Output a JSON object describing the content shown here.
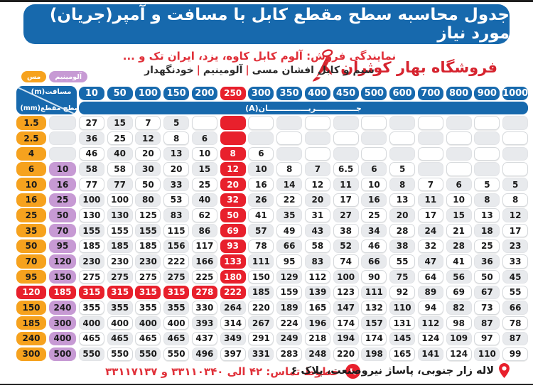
{
  "title": "جدول محاسبه سطح مقطع کابل با مسافت و آمپر(جریان) مورد نیاز",
  "brand": {
    "name": "فروشگاه بهار کوثران"
  },
  "subheader": {
    "line1": "نمایندگی فروش: آلوم کابل کاوه، یزد، ایران تک و ...",
    "line2_segments": [
      "سیم و کابل افشان مسی",
      "آلومینیم",
      "خودنگهدار"
    ]
  },
  "legend": {
    "copper": "مس",
    "aluminum": "آلومینیم"
  },
  "table": {
    "corner": {
      "top": "مسافت(m)",
      "bottom": "سطح مقطع(mm)"
    },
    "current_label": "جـــــــــــــــريـــــــــــــــان(A)",
    "distances": [
      "10",
      "50",
      "100",
      "150",
      "200",
      "250",
      "300",
      "350",
      "400",
      "450",
      "500",
      "600",
      "700",
      "800",
      "900",
      "1000"
    ],
    "copper_sizes": [
      "1.5",
      "2.5",
      "4",
      "6",
      "10",
      "16",
      "25",
      "35",
      "50",
      "70",
      "95",
      "120",
      "150",
      "185",
      "240",
      "300"
    ],
    "aluminum_sizes": [
      "",
      "",
      "",
      "10",
      "16",
      "25",
      "50",
      "70",
      "95",
      "120",
      "150",
      "185",
      "240",
      "300",
      "400",
      "500"
    ],
    "highlight_col_index": 5,
    "highlight_row_index": 11,
    "rows": [
      [
        "27",
        "15",
        "7",
        "5",
        "",
        "",
        "",
        "",
        "",
        "",
        "",
        "",
        "",
        "",
        "",
        ""
      ],
      [
        "36",
        "25",
        "12",
        "8",
        "6",
        "",
        "",
        "",
        "",
        "",
        "",
        "",
        "",
        "",
        "",
        ""
      ],
      [
        "46",
        "40",
        "20",
        "13",
        "10",
        "8",
        "6",
        "",
        "",
        "",
        "",
        "",
        "",
        "",
        "",
        ""
      ],
      [
        "58",
        "58",
        "30",
        "20",
        "15",
        "12",
        "10",
        "8",
        "7",
        "6.5",
        "6",
        "5",
        "",
        "",
        "",
        ""
      ],
      [
        "77",
        "77",
        "50",
        "33",
        "25",
        "20",
        "16",
        "14",
        "12",
        "11",
        "10",
        "8",
        "7",
        "6",
        "5",
        "5"
      ],
      [
        "100",
        "100",
        "80",
        "53",
        "40",
        "32",
        "26",
        "22",
        "20",
        "17",
        "16",
        "13",
        "11",
        "10",
        "8",
        "8"
      ],
      [
        "130",
        "130",
        "125",
        "83",
        "62",
        "50",
        "41",
        "35",
        "31",
        "27",
        "25",
        "20",
        "17",
        "15",
        "13",
        "12"
      ],
      [
        "155",
        "155",
        "155",
        "115",
        "86",
        "69",
        "57",
        "49",
        "43",
        "38",
        "34",
        "28",
        "24",
        "21",
        "18",
        "17"
      ],
      [
        "185",
        "185",
        "185",
        "156",
        "117",
        "93",
        "78",
        "66",
        "58",
        "52",
        "46",
        "38",
        "32",
        "28",
        "25",
        "23"
      ],
      [
        "230",
        "230",
        "230",
        "222",
        "166",
        "133",
        "111",
        "95",
        "83",
        "74",
        "66",
        "55",
        "47",
        "41",
        "36",
        "33"
      ],
      [
        "275",
        "275",
        "275",
        "275",
        "225",
        "180",
        "150",
        "129",
        "112",
        "100",
        "90",
        "75",
        "64",
        "56",
        "50",
        "45"
      ],
      [
        "315",
        "315",
        "315",
        "315",
        "278",
        "222",
        "185",
        "159",
        "139",
        "123",
        "111",
        "92",
        "89",
        "69",
        "67",
        "55"
      ],
      [
        "355",
        "355",
        "355",
        "355",
        "330",
        "264",
        "220",
        "189",
        "165",
        "147",
        "132",
        "110",
        "94",
        "82",
        "73",
        "66"
      ],
      [
        "400",
        "400",
        "400",
        "400",
        "393",
        "314",
        "267",
        "224",
        "196",
        "174",
        "157",
        "131",
        "112",
        "98",
        "87",
        "78"
      ],
      [
        "465",
        "465",
        "465",
        "465",
        "437",
        "349",
        "291",
        "249",
        "218",
        "194",
        "174",
        "145",
        "124",
        "109",
        "97",
        "87"
      ],
      [
        "550",
        "550",
        "550",
        "550",
        "496",
        "397",
        "331",
        "283",
        "248",
        "220",
        "198",
        "165",
        "141",
        "124",
        "110",
        "99"
      ]
    ]
  },
  "footer": {
    "phones": "خطوط تماس: ۴۲ الی ۳۳۱۱۰۳۴۰ و ۳۳۱۱۷۱۳۷",
    "address": "لاله زار جنوبی، پاساژ نیروصنعت، پلاک ۶"
  },
  "colors": {
    "blue": "#1769ad",
    "red": "#e8202c",
    "orange": "#f6a21e",
    "purple": "#c79ad4",
    "cell_gray": "#e8eaed"
  }
}
